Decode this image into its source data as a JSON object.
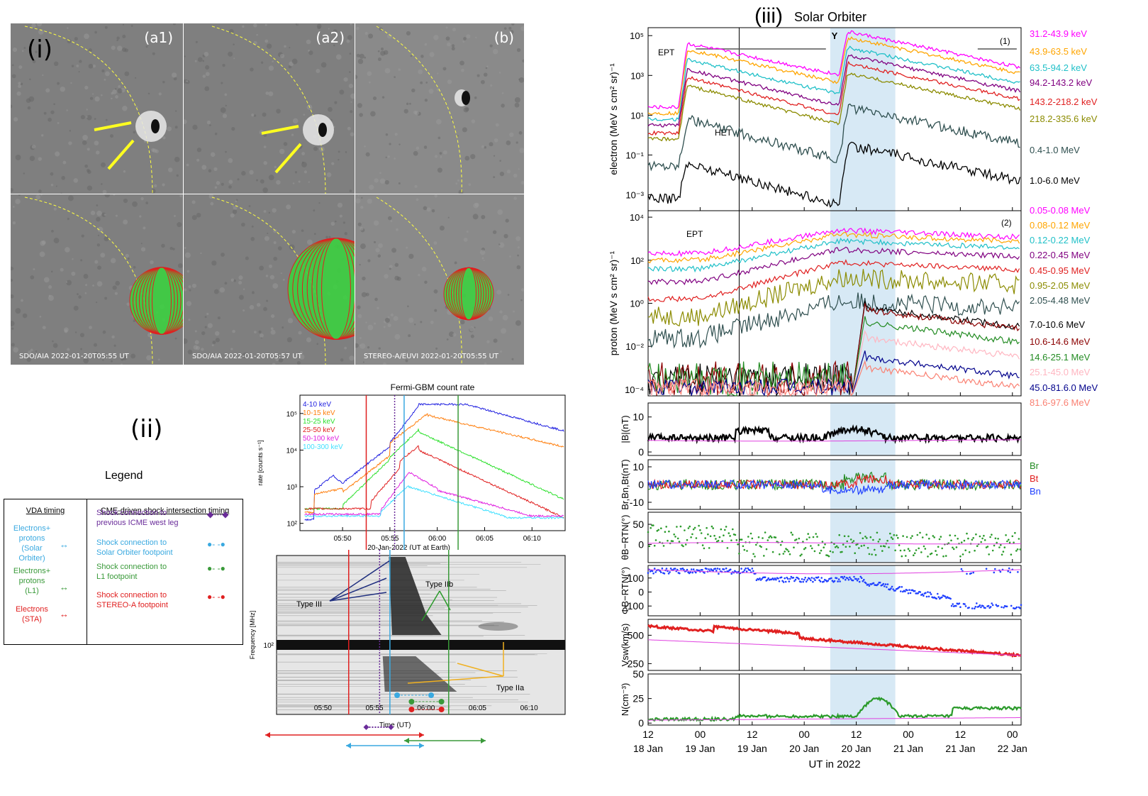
{
  "panel_i": {
    "label": "(i)",
    "panels": [
      {
        "tag": "(a1)",
        "caption": ""
      },
      {
        "tag": "(a2)",
        "caption": ""
      },
      {
        "tag": "(b)",
        "caption": ""
      },
      {
        "tag": "",
        "caption": "SDO/AIA 2022-01-20T05:55 UT"
      },
      {
        "tag": "",
        "caption": "SDO/AIA 2022-01-20T05:57 UT"
      },
      {
        "tag": "",
        "caption": "STEREO-A/EUVI 2022-01-20T05:55 UT"
      }
    ]
  },
  "panel_ii": {
    "label": "(ii)",
    "legend": {
      "title": "Legend",
      "col1_header": "VDA timing",
      "col2_header": "CME-driven shock intersection timing",
      "rows": [
        {
          "label": "Electrons+\nprotons\n(Solar\nOrbiter)",
          "color": "#3aa9e0",
          "shock": "Shock connection to\nprevious ICME west leg",
          "shock_color": "#6a2c9a"
        },
        {
          "label": "Electrons+\nprotons\n(L1)",
          "color": "#3a9a3a",
          "shock": "Shock connection to\nSolar Orbiter footpoint",
          "shock_color": "#3aa9e0"
        },
        {
          "label": "Electrons\n(STA)",
          "color": "#e02020",
          "shock": "Shock connection to\nL1 footpoint",
          "shock_color": "#3a9a3a"
        },
        {
          "label": "",
          "color": "",
          "shock": "Shock connection to\nSTEREO-A footpoint",
          "shock_color": "#e02020"
        }
      ]
    },
    "gbm": {
      "title": "Fermi-GBM count rate",
      "ylabel": "rate [counts s⁻¹]",
      "xlabel": "20-Jan-2022 (UT at Earth)",
      "xticks": [
        "05:50",
        "05:55",
        "06:00",
        "06:05",
        "06:10"
      ],
      "yticks": [
        "10²",
        "10³",
        "10⁴",
        "10⁵"
      ]
    },
    "radio": {
      "ylabel": "Frequency [MHz]",
      "xlabel": "Time (UT)",
      "ytick": "10²",
      "xticks": [
        "05:50",
        "05:55",
        "06:00",
        "06:05",
        "06:10"
      ],
      "annotations": [
        "Type III",
        "Type IIb",
        "Type IIa"
      ]
    }
  },
  "panel_iii": {
    "label": "(iii)",
    "title": "Solar Orbiter",
    "xlabel": "UT in 2022",
    "xticks_top": [
      "12",
      "00",
      "12",
      "00",
      "12",
      "00",
      "12",
      "00"
    ],
    "xticks_bottom": [
      "18 Jan",
      "19 Jan",
      "19 Jan",
      "20 Jan",
      "20 Jan",
      "21 Jan",
      "21 Jan",
      "22 Jan"
    ],
    "electron": {
      "ylabel": "electron (MeV s cm² sr)⁻¹",
      "yticks": [
        "10⁻³",
        "10⁻¹",
        "10¹",
        "10³",
        "10⁵"
      ],
      "tag": "(1)",
      "ept": "EPT",
      "het": "HET",
      "channels": [
        {
          "label": "31.2-43.9 keV",
          "color": "#ff00ff"
        },
        {
          "label": "43.9-63.5 keV",
          "color": "#ffa500"
        },
        {
          "label": "63.5-94.2 keV",
          "color": "#20c0c8"
        },
        {
          "label": "94.2-143.2 keV",
          "color": "#800080"
        },
        {
          "label": "143.2-218.2 keV",
          "color": "#e02020"
        },
        {
          "label": "218.2-335.6 keV",
          "color": "#8b8b00"
        },
        {
          "label": "0.4-1.0 MeV",
          "color": "#2f4f4f"
        },
        {
          "label": "1.0-6.0 MeV",
          "color": "#000000"
        }
      ]
    },
    "proton": {
      "ylabel": "proton (MeV s cm² sr)⁻¹",
      "yticks": [
        "10⁻⁴",
        "10⁻²",
        "10⁰",
        "10²",
        "10⁴"
      ],
      "tag": "(2)",
      "ept": "EPT",
      "channels": [
        {
          "label": "0.05-0.08 MeV",
          "color": "#ff00ff"
        },
        {
          "label": "0.08-0.12 MeV",
          "color": "#ffa500"
        },
        {
          "label": "0.12-0.22 MeV",
          "color": "#20c0c8"
        },
        {
          "label": "0.22-0.45 MeV",
          "color": "#800080"
        },
        {
          "label": "0.45-0.95 MeV",
          "color": "#e02020"
        },
        {
          "label": "0.95-2.05 MeV",
          "color": "#8b8b00"
        },
        {
          "label": "2.05-4.48 MeV",
          "color": "#2f4f4f"
        },
        {
          "label": "7.0-10.6 MeV",
          "color": "#000000"
        },
        {
          "label": "10.6-14.6 MeV",
          "color": "#8b0000"
        },
        {
          "label": "14.6-25.1 MeV",
          "color": "#228b22"
        },
        {
          "label": "25.1-45.0 MeV",
          "color": "#ffb6c1"
        },
        {
          "label": "45.0-81.6.0 MeV",
          "color": "#00008b"
        },
        {
          "label": "81.6-97.6 MeV",
          "color": "#fa8072"
        }
      ]
    },
    "b": {
      "ylabel": "|B|(nT)",
      "yticks": [
        "0",
        "10"
      ]
    },
    "brtn": {
      "ylabel": "Br,Bn,Bt(nT)",
      "yticks": [
        "-10",
        "0",
        "10"
      ],
      "legend": [
        "Br",
        "Bt",
        "Bn"
      ],
      "legend_colors": [
        "#228b22",
        "#e02020",
        "#1f3fff"
      ]
    },
    "theta": {
      "ylabel": "θB−RTN(°)",
      "yticks": [
        "0",
        "50"
      ]
    },
    "phi": {
      "ylabel": "ΦB−RTN(°)",
      "yticks": [
        "-100",
        "0",
        "100"
      ]
    },
    "vsw": {
      "ylabel": "Vsw(km/s)",
      "yticks": [
        "250",
        "500"
      ]
    },
    "n": {
      "ylabel": "N(cm⁻³)",
      "yticks": [
        "0",
        "25",
        "50"
      ]
    }
  }
}
